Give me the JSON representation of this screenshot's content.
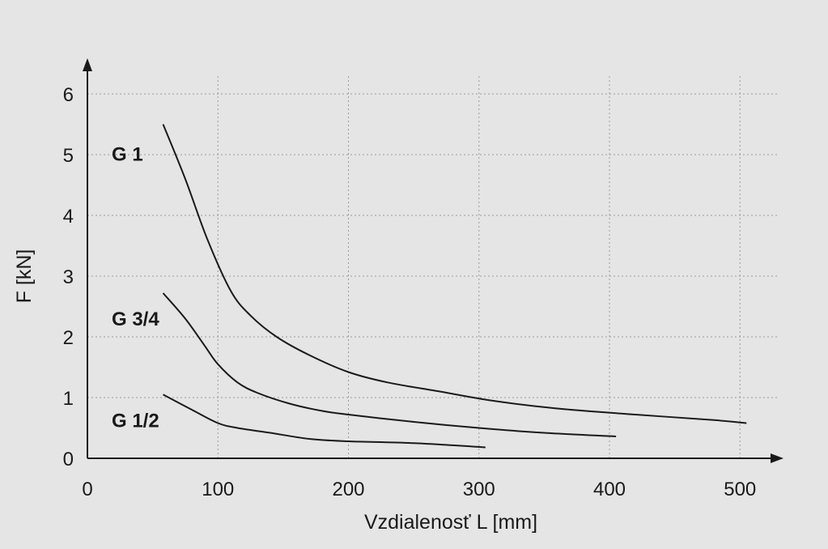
{
  "chart_data": {
    "type": "line",
    "title": "",
    "xlabel": "Vzdialenosť L [mm]",
    "ylabel": "F [kN]",
    "xlim": [
      0,
      530
    ],
    "ylim": [
      0,
      6.5
    ],
    "xticks": [
      0,
      100,
      200,
      300,
      400,
      500
    ],
    "yticks": [
      0,
      1,
      2,
      3,
      4,
      5,
      6
    ],
    "grid": true,
    "series": [
      {
        "name": "G 1",
        "x": [
          58,
          75,
          92,
          110,
          125,
          145,
          170,
          200,
          230,
          270,
          310,
          360,
          420,
          480,
          505
        ],
        "y": [
          5.5,
          4.6,
          3.6,
          2.75,
          2.35,
          2.0,
          1.7,
          1.42,
          1.25,
          1.1,
          0.95,
          0.82,
          0.72,
          0.63,
          0.58
        ]
      },
      {
        "name": "G 3/4",
        "x": [
          58,
          75,
          90,
          100,
          115,
          130,
          155,
          180,
          200,
          250,
          300,
          350,
          405
        ],
        "y": [
          2.72,
          2.3,
          1.85,
          1.55,
          1.25,
          1.08,
          0.9,
          0.78,
          0.72,
          0.6,
          0.5,
          0.42,
          0.36
        ]
      },
      {
        "name": "G 1/2",
        "x": [
          58,
          80,
          100,
          115,
          140,
          170,
          200,
          250,
          305
        ],
        "y": [
          1.05,
          0.8,
          0.58,
          0.5,
          0.42,
          0.32,
          0.28,
          0.25,
          0.18
        ]
      }
    ]
  }
}
